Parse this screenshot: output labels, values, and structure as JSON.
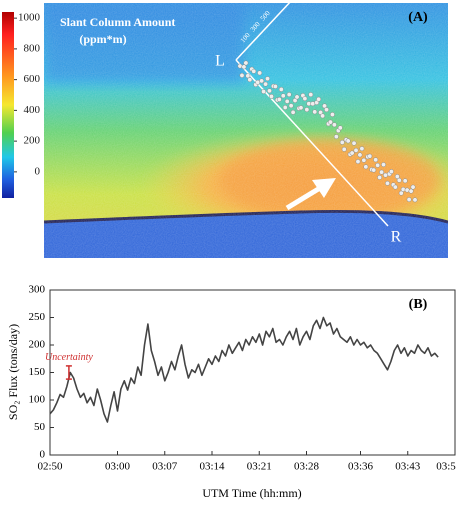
{
  "panel_a": {
    "label": "(A)",
    "title": "Slant Column Amount",
    "unit": "(ppm*m)",
    "left_marker": "L",
    "right_marker": "R",
    "distance_labels": [
      "500",
      "300",
      "100"
    ],
    "colorbar": {
      "lim": [
        -170,
        1040
      ],
      "ticks": [
        0,
        200,
        400,
        600,
        800,
        1000
      ]
    }
  },
  "chart_data": {
    "type": "line",
    "label": "(B)",
    "xlabel": "UTM Time (hh:mm)",
    "ylabel": "SO₂ Flux (tons/day)",
    "color": "#444444",
    "x": [
      0,
      0.5,
      1,
      1.5,
      2,
      2.5,
      3,
      3.5,
      4,
      4.5,
      5,
      5.5,
      6,
      6.5,
      7,
      7.5,
      8,
      8.5,
      9,
      9.5,
      10,
      10.5,
      11,
      11.5,
      12,
      12.5,
      13,
      13.5,
      14,
      14.5,
      15,
      15.5,
      16,
      16.5,
      17,
      17.5,
      18,
      18.5,
      19,
      19.5,
      20,
      20.5,
      21,
      21.5,
      22,
      22.5,
      23,
      23.5,
      24,
      24.5,
      25,
      25.5,
      26,
      26.5,
      27,
      27.5,
      28,
      28.5,
      29,
      29.5,
      30,
      30.5,
      31,
      31.5,
      32,
      32.5,
      33,
      33.5,
      34,
      34.5,
      35,
      35.5,
      36,
      36.5,
      37,
      37.5,
      38,
      38.5,
      39,
      39.5,
      40,
      40.5,
      41,
      41.5,
      42,
      42.5,
      43,
      43.5,
      44,
      44.5,
      45,
      45.5,
      46,
      46.5,
      47,
      47.5,
      48,
      48.5,
      49,
      49.5,
      50,
      50.5,
      51,
      51.5,
      52,
      52.5,
      53,
      53.5,
      54,
      54.5,
      55,
      55.5,
      56,
      56.5,
      57,
      57.5
    ],
    "values": [
      75,
      82,
      95,
      110,
      105,
      125,
      150,
      140,
      120,
      105,
      112,
      95,
      105,
      90,
      120,
      100,
      75,
      60,
      90,
      115,
      80,
      120,
      135,
      118,
      140,
      130,
      160,
      145,
      200,
      238,
      190,
      170,
      145,
      160,
      135,
      150,
      170,
      155,
      180,
      200,
      165,
      140,
      155,
      150,
      165,
      145,
      160,
      175,
      165,
      180,
      170,
      190,
      180,
      200,
      185,
      195,
      205,
      190,
      210,
      200,
      215,
      205,
      220,
      200,
      225,
      215,
      230,
      205,
      210,
      200,
      215,
      225,
      210,
      230,
      200,
      215,
      225,
      210,
      235,
      245,
      230,
      250,
      235,
      240,
      220,
      230,
      215,
      210,
      205,
      215,
      200,
      210,
      200,
      205,
      195,
      200,
      190,
      185,
      175,
      165,
      155,
      170,
      190,
      200,
      185,
      195,
      180,
      190,
      185,
      200,
      190,
      185,
      195,
      180,
      185,
      178
    ],
    "xlim": [
      0,
      60
    ],
    "xticks": [
      {
        "value": 0,
        "label": "02:50"
      },
      {
        "value": 10,
        "label": "03:00"
      },
      {
        "value": 17,
        "label": "03:07"
      },
      {
        "value": 24,
        "label": "03:14"
      },
      {
        "value": 31,
        "label": "03:21"
      },
      {
        "value": 38,
        "label": "03:28"
      },
      {
        "value": 46,
        "label": "03:36"
      },
      {
        "value": 53,
        "label": "03:43"
      },
      {
        "value": 60,
        "label": "03:5"
      }
    ],
    "ylim": [
      0,
      300
    ],
    "yticks": [
      0,
      50,
      100,
      150,
      200,
      250,
      300
    ],
    "uncertainty": {
      "label": "Uncertainty",
      "x": 2.8,
      "value": 150,
      "error": 12,
      "color": "#d03030"
    }
  }
}
